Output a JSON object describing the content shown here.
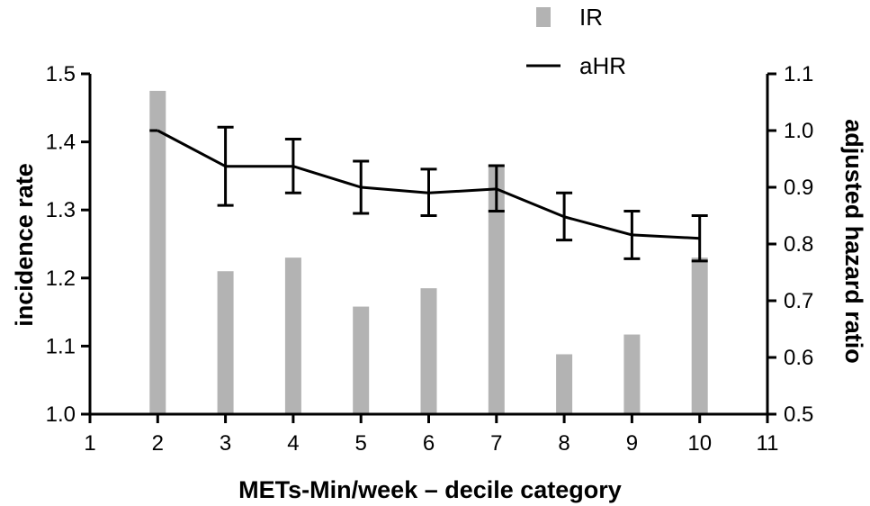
{
  "chart_data": {
    "type": "bar",
    "xlabel": "METs-Min/week – decile category",
    "ylabel_left": "incidence rate",
    "ylabel_right": "adjusted hazard ratio",
    "x_range": [
      1,
      11
    ],
    "x_ticks": [
      1,
      2,
      3,
      4,
      5,
      6,
      7,
      8,
      9,
      10,
      11
    ],
    "y_left_range": [
      1.0,
      1.5
    ],
    "y_left_ticks": [
      "1.0",
      "1.1",
      "1.2",
      "1.3",
      "1.4",
      "1.5"
    ],
    "y_right_range": [
      0.5,
      1.1
    ],
    "y_right_ticks": [
      "0.5",
      "0.6",
      "0.7",
      "0.8",
      "0.9",
      "1.0",
      "1.1"
    ],
    "grid": false,
    "legend_position": "top",
    "legend": [
      {
        "label": "IR",
        "kind": "bar"
      },
      {
        "label": "aHR",
        "kind": "line"
      }
    ],
    "series": [
      {
        "name": "IR",
        "kind": "bar",
        "axis": "left",
        "color": "#b3b3b3",
        "x": [
          2,
          3,
          4,
          5,
          6,
          7,
          8,
          9,
          10
        ],
        "values": [
          1.475,
          1.21,
          1.23,
          1.158,
          1.185,
          1.365,
          1.088,
          1.117,
          1.23
        ]
      },
      {
        "name": "aHR",
        "kind": "line",
        "axis": "right",
        "color": "#000000",
        "x": [
          2,
          3,
          4,
          5,
          6,
          7,
          8,
          9,
          10
        ],
        "values": [
          1.0,
          0.937,
          0.937,
          0.9,
          0.89,
          0.897,
          0.848,
          0.816,
          0.81
        ],
        "error_low": [
          1.0,
          0.868,
          0.89,
          0.854,
          0.85,
          0.858,
          0.807,
          0.774,
          0.77
        ],
        "error_high": [
          1.0,
          1.006,
          0.985,
          0.946,
          0.932,
          0.938,
          0.89,
          0.858,
          0.85
        ]
      }
    ]
  }
}
